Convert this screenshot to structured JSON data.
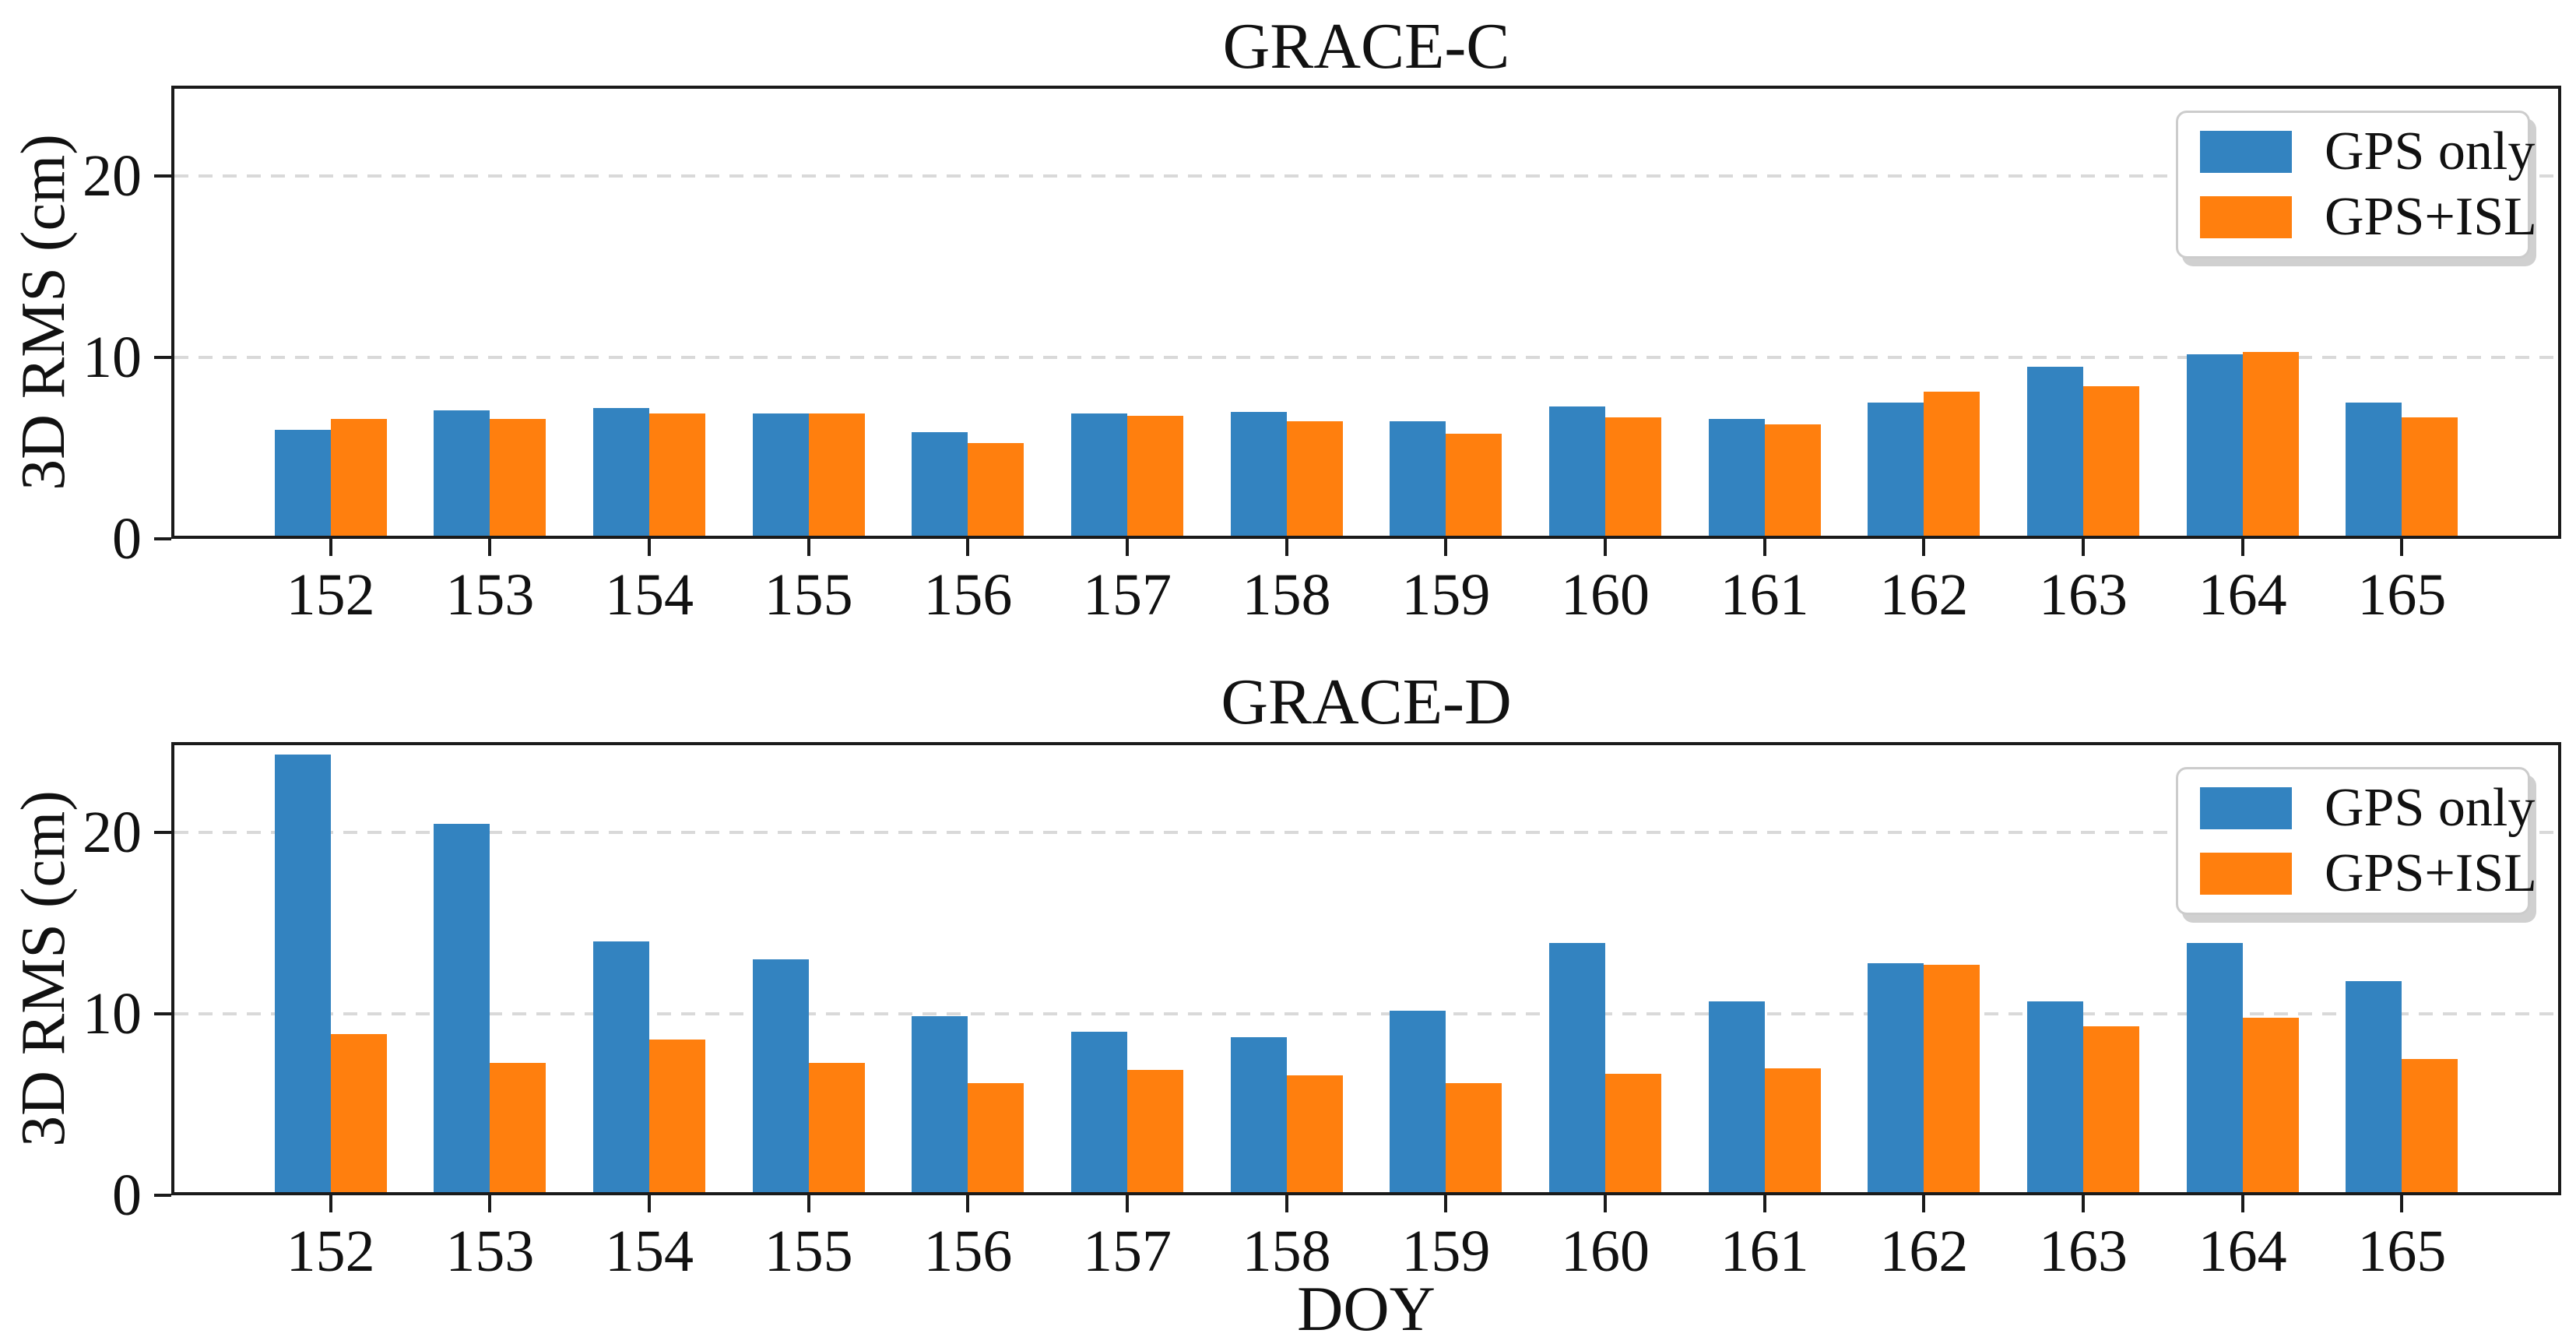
{
  "figure": {
    "background": "#ffffff",
    "axis_color": "#1a1a1a",
    "grid_color": "#d9d9d9",
    "text_color": "#111111",
    "legend_border_color": "#cccccc"
  },
  "chart_data": [
    {
      "type": "bar",
      "title": "GRACE-C",
      "ylabel": "3D RMS (cm)",
      "xlabel": "",
      "categories": [
        "152",
        "153",
        "154",
        "155",
        "156",
        "157",
        "158",
        "159",
        "160",
        "161",
        "162",
        "163",
        "164",
        "165"
      ],
      "series": [
        {
          "name": "GPS only",
          "color": "#3383c0",
          "values": [
            6.0,
            7.1,
            7.2,
            6.9,
            5.9,
            6.9,
            7.0,
            6.5,
            7.3,
            6.6,
            7.5,
            9.5,
            10.2,
            7.5
          ]
        },
        {
          "name": "GPS+ISL",
          "color": "#ff7f0e",
          "values": [
            6.6,
            6.6,
            6.9,
            6.9,
            5.3,
            6.8,
            6.5,
            5.8,
            6.7,
            6.3,
            8.1,
            8.4,
            10.3,
            6.7
          ]
        }
      ],
      "ylim": [
        0,
        25
      ],
      "yticks": [
        "0",
        "10",
        "20"
      ],
      "ytick_values": [
        0,
        10,
        20
      ],
      "gridline_values": [
        10,
        20
      ],
      "grid_style": "dashed",
      "legend_position": "top-right"
    },
    {
      "type": "bar",
      "title": "GRACE-D",
      "ylabel": "3D RMS (cm)",
      "xlabel": "DOY",
      "categories": [
        "152",
        "153",
        "154",
        "155",
        "156",
        "157",
        "158",
        "159",
        "160",
        "161",
        "162",
        "163",
        "164",
        "165"
      ],
      "series": [
        {
          "name": "GPS only",
          "color": "#3383c0",
          "values": [
            24.3,
            20.5,
            14.0,
            13.0,
            9.9,
            9.0,
            8.7,
            10.2,
            13.9,
            10.7,
            12.8,
            10.7,
            13.9,
            11.8
          ]
        },
        {
          "name": "GPS+ISL",
          "color": "#ff7f0e",
          "values": [
            8.9,
            7.3,
            8.6,
            7.3,
            6.2,
            6.9,
            6.6,
            6.2,
            6.7,
            7.0,
            12.7,
            9.3,
            9.8,
            7.5
          ]
        }
      ],
      "ylim": [
        0,
        25
      ],
      "yticks": [
        "0",
        "10",
        "20"
      ],
      "ytick_values": [
        0,
        10,
        20
      ],
      "gridline_values": [
        10,
        20
      ],
      "grid_style": "dashed",
      "legend_position": "top-right"
    }
  ]
}
